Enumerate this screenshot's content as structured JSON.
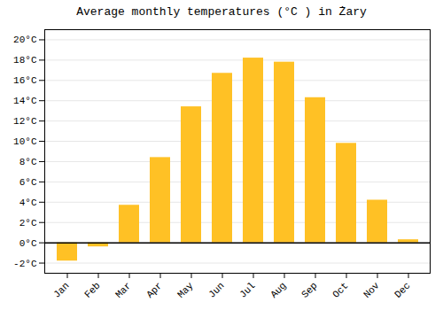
{
  "chart_data": {
    "type": "bar",
    "title": "Average monthly temperatures (°C ) in Żary",
    "categories": [
      "Jan",
      "Feb",
      "Mar",
      "Apr",
      "May",
      "Jun",
      "Jul",
      "Aug",
      "Sep",
      "Oct",
      "Nov",
      "Dec"
    ],
    "values": [
      -1.8,
      -0.4,
      3.7,
      8.4,
      13.4,
      16.7,
      18.2,
      17.8,
      14.3,
      9.8,
      4.2,
      0.3
    ],
    "color": "#FFC125",
    "ylim": [
      -3,
      21
    ],
    "yticks": [
      {
        "value": -2,
        "label": "-2°C"
      },
      {
        "value": 0,
        "label": "0°C"
      },
      {
        "value": 2,
        "label": "2°C"
      },
      {
        "value": 4,
        "label": "4°C"
      },
      {
        "value": 6,
        "label": "6°C"
      },
      {
        "value": 8,
        "label": "8°C"
      },
      {
        "value": 10,
        "label": "10°C"
      },
      {
        "value": 12,
        "label": "12°C"
      },
      {
        "value": 14,
        "label": "14°C"
      },
      {
        "value": 16,
        "label": "16°C"
      },
      {
        "value": 18,
        "label": "18°C"
      },
      {
        "value": 20,
        "label": "20°C"
      }
    ],
    "grid": true
  }
}
